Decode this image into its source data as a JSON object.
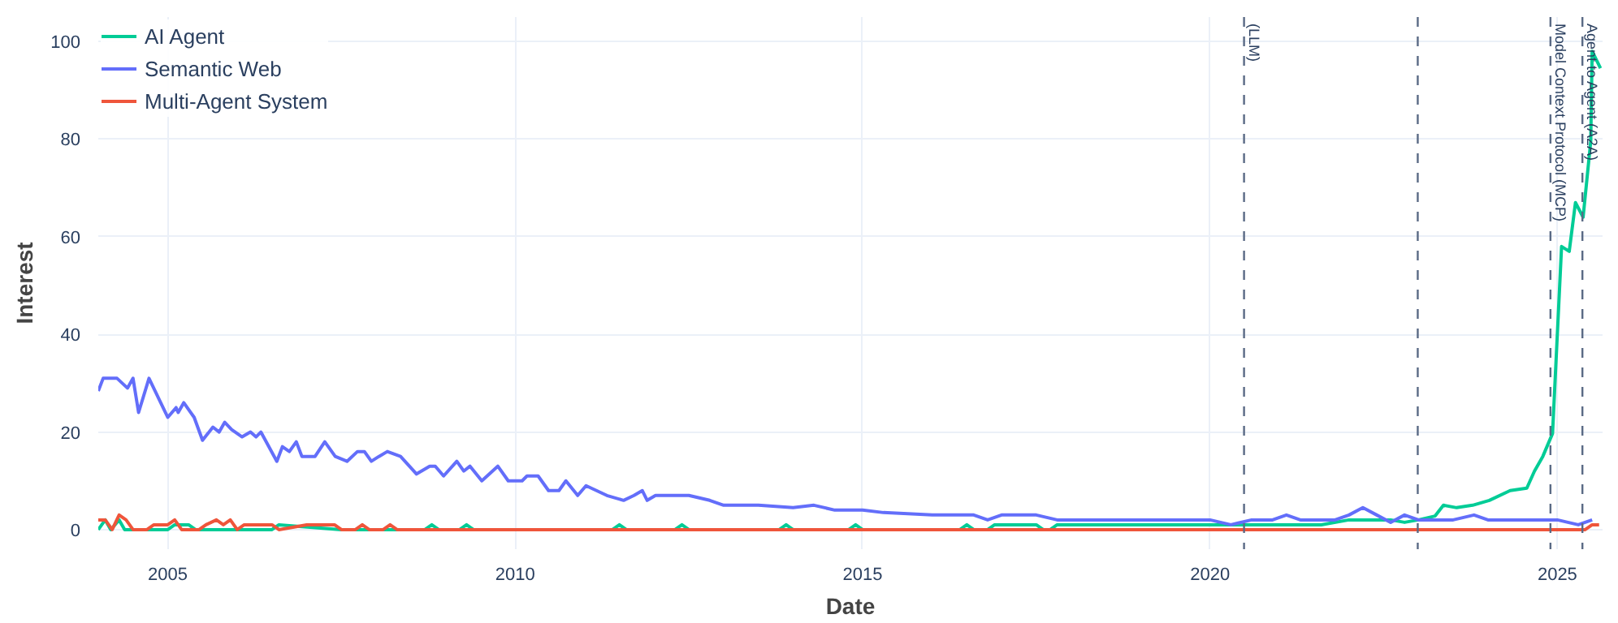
{
  "chart_data": {
    "type": "line",
    "xlabel": "Date",
    "ylabel": "Interest",
    "xlim": [
      2004.0,
      2025.65
    ],
    "ylim": [
      -4,
      105
    ],
    "xticks": [
      2005,
      2010,
      2015,
      2020,
      2025
    ],
    "yticks": [
      0,
      20,
      40,
      60,
      80,
      100
    ],
    "grid": true,
    "legend": "top left",
    "line_style": "solid",
    "marker": "none",
    "ref_lines": [
      {
        "axis": "x",
        "value": 2020.49,
        "label": "(LLM)",
        "line_style": "dashed",
        "color": "#5a6a85"
      },
      {
        "axis": "x",
        "value": 2022.99,
        "label": null,
        "line_style": "dashed",
        "color": "#5a6a85"
      },
      {
        "axis": "x",
        "value": 2024.9,
        "label": "Model Context Protocol (MCP)",
        "line_style": "dashed",
        "color": "#5a6a85"
      },
      {
        "axis": "x",
        "value": 2025.36,
        "label": "Agent to Agent (A2A)",
        "line_style": "dashed",
        "color": "#5a6a85"
      }
    ],
    "series": [
      {
        "name": "AI Agent",
        "color": "#00cc96",
        "x": [
          2004.0,
          2004.1,
          2004.18,
          2004.3,
          2004.38,
          2005.0,
          2005.1,
          2005.3,
          2005.4,
          2006.5,
          2006.6,
          2007.5,
          2008.7,
          2008.8,
          2008.9,
          2009.2,
          2009.3,
          2009.4,
          2011.4,
          2011.5,
          2011.6,
          2012.3,
          2012.4,
          2012.5,
          2013.8,
          2013.9,
          2014.0,
          2014.8,
          2014.9,
          2015.0,
          2016.4,
          2016.5,
          2016.6,
          2016.8,
          2016.9,
          2017.5,
          2017.6,
          2017.7,
          2017.8,
          2020.6,
          2021.0,
          2021.6,
          2022.0,
          2022.6,
          2022.8,
          2023.0,
          2023.24,
          2023.36,
          2023.55,
          2023.78,
          2024.02,
          2024.32,
          2024.56,
          2024.67,
          2024.79,
          2024.93,
          2025.06,
          2025.17,
          2025.26,
          2025.37,
          2025.48,
          2025.5,
          2025.62
        ],
        "values": [
          0,
          2,
          0,
          2,
          0,
          0,
          1,
          1,
          0,
          0,
          1,
          0,
          0,
          1,
          0,
          0,
          1,
          0,
          0,
          1,
          0,
          0,
          1,
          0,
          0,
          1,
          0,
          0,
          1,
          0,
          0,
          1,
          0,
          0,
          1,
          1,
          0,
          0,
          1,
          1,
          1,
          1,
          2,
          2,
          1.5,
          2,
          2.8,
          5,
          4.5,
          5,
          6,
          8,
          8.5,
          12,
          15,
          19.7,
          58,
          57,
          67,
          64,
          79.6,
          98,
          94.5
        ]
      },
      {
        "name": "Semantic Web",
        "color": "#636efa",
        "x": [
          2004.0,
          2004.07,
          2004.27,
          2004.42,
          2004.5,
          2004.58,
          2004.73,
          2005.0,
          2005.12,
          2005.15,
          2005.23,
          2005.38,
          2005.5,
          2005.65,
          2005.74,
          2005.82,
          2005.92,
          2006.07,
          2006.19,
          2006.27,
          2006.34,
          2006.57,
          2006.65,
          2006.75,
          2006.85,
          2006.93,
          2007.12,
          2007.26,
          2007.41,
          2007.58,
          2007.73,
          2007.83,
          2007.93,
          2008.04,
          2008.16,
          2008.35,
          2008.58,
          2008.77,
          2008.85,
          2008.97,
          2009.16,
          2009.26,
          2009.35,
          2009.52,
          2009.75,
          2009.9,
          2010.1,
          2010.17,
          2010.33,
          2010.48,
          2010.63,
          2010.73,
          2010.9,
          2011.02,
          2011.17,
          2011.32,
          2011.56,
          2011.71,
          2011.83,
          2011.9,
          2012.02,
          2012.5,
          2012.8,
          2013.0,
          2013.5,
          2014.0,
          2014.3,
          2014.6,
          2015.0,
          2015.3,
          2016.0,
          2016.6,
          2016.8,
          2017.0,
          2017.5,
          2017.8,
          2018.5,
          2020.0,
          2020.3,
          2020.6,
          2020.9,
          2021.1,
          2021.3,
          2021.8,
          2022.0,
          2022.2,
          2022.4,
          2022.6,
          2022.8,
          2023.0,
          2023.5,
          2023.8,
          2024.0,
          2024.5,
          2025.0,
          2025.3,
          2025.5
        ],
        "values": [
          28.4,
          31,
          31,
          29,
          31,
          24,
          31,
          23,
          25,
          24,
          26,
          23,
          18.3,
          21,
          20,
          22,
          20.5,
          19,
          20,
          19,
          20,
          14,
          17,
          16,
          18,
          15,
          15,
          18,
          15,
          14,
          16,
          16,
          14,
          15,
          16,
          15,
          11.4,
          13,
          13,
          11,
          14,
          12,
          13,
          10,
          13,
          10,
          10,
          11,
          11,
          8,
          8,
          10,
          7,
          9,
          8,
          7,
          6,
          7,
          8,
          6,
          7,
          7,
          6,
          5,
          5,
          4.5,
          5,
          4,
          4,
          3.5,
          3,
          3,
          2,
          3,
          3,
          2,
          2,
          2,
          1,
          2,
          2,
          3,
          2,
          2,
          3,
          4.5,
          3,
          1.5,
          3,
          2,
          2,
          3,
          2,
          2,
          2,
          1,
          2
        ]
      },
      {
        "name": "Multi-Agent System",
        "color": "#ef553b",
        "x": [
          2004.0,
          2004.1,
          2004.2,
          2004.3,
          2004.4,
          2004.5,
          2004.7,
          2004.8,
          2005.0,
          2005.1,
          2005.2,
          2005.45,
          2005.55,
          2005.7,
          2005.8,
          2005.9,
          2006.0,
          2006.1,
          2006.5,
          2006.6,
          2007.0,
          2007.4,
          2007.5,
          2007.7,
          2007.8,
          2007.9,
          2008.1,
          2008.2,
          2008.3,
          2025.4,
          2025.5,
          2025.6
        ],
        "values": [
          2,
          2,
          0,
          3,
          2,
          0,
          0,
          1,
          1,
          2,
          0,
          0,
          1,
          2,
          1,
          2,
          0,
          1,
          1,
          0,
          1,
          1,
          0,
          0,
          1,
          0,
          0,
          1,
          0,
          0,
          1,
          1
        ]
      }
    ]
  }
}
